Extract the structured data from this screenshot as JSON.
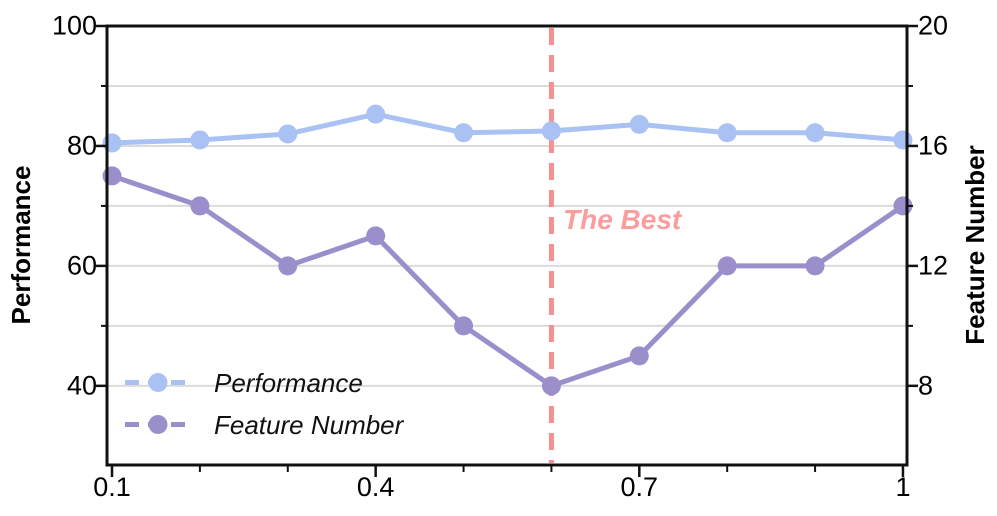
{
  "chart_data": {
    "type": "line",
    "x": [
      0.1,
      0.2,
      0.3,
      0.4,
      0.5,
      0.6,
      0.7,
      0.8,
      0.9,
      1.0
    ],
    "series": [
      {
        "name": "Performance",
        "axis": "left",
        "color": "#a9c2f3",
        "values": [
          80.5,
          81.0,
          82.0,
          85.3,
          82.2,
          82.5,
          83.6,
          82.2,
          82.2,
          81.0
        ]
      },
      {
        "name": "Feature Number",
        "axis": "right",
        "color": "#9b8fcb",
        "values": [
          15,
          14,
          12,
          13,
          10,
          8,
          9,
          12,
          12,
          14
        ]
      }
    ],
    "axes": {
      "left": {
        "label": "Performance",
        "tick_labels": [
          "100",
          "80",
          "60",
          "40"
        ],
        "tick_values": [
          100,
          80,
          60,
          40
        ],
        "minor_ticks": [
          90,
          70,
          50
        ],
        "range": [
          26.8,
          100
        ]
      },
      "right": {
        "label": "Feature Number",
        "tick_labels": [
          "20",
          "16",
          "12",
          "8"
        ],
        "tick_values": [
          20,
          16,
          12,
          8
        ],
        "minor_ticks": [
          18,
          14,
          10
        ],
        "range": [
          5.36,
          20
        ]
      },
      "x": {
        "tick_labels": [
          "0.1",
          "0.4",
          "0.7",
          "1"
        ],
        "tick_values": [
          0.1,
          0.4,
          0.7,
          1.0
        ],
        "minor_ticks": [
          0.2,
          0.3,
          0.5,
          0.6,
          0.8,
          0.9
        ],
        "range": [
          0.0943,
          1.0046
        ]
      }
    },
    "grid": {
      "color": "#dbdbdb",
      "values": [
        90,
        80,
        70,
        60,
        50,
        40
      ]
    },
    "vline": {
      "x": 0.6,
      "color": "#f69090",
      "dash": [
        17,
        10
      ],
      "width": 5
    },
    "annotation": {
      "text": "The Best",
      "color": "#fa9d9d"
    },
    "legend": {
      "items": [
        "Performance",
        "Feature Number"
      ]
    },
    "style": {
      "spine_color": "#111111",
      "marker_radius": 9.5,
      "line_width": 5
    }
  }
}
